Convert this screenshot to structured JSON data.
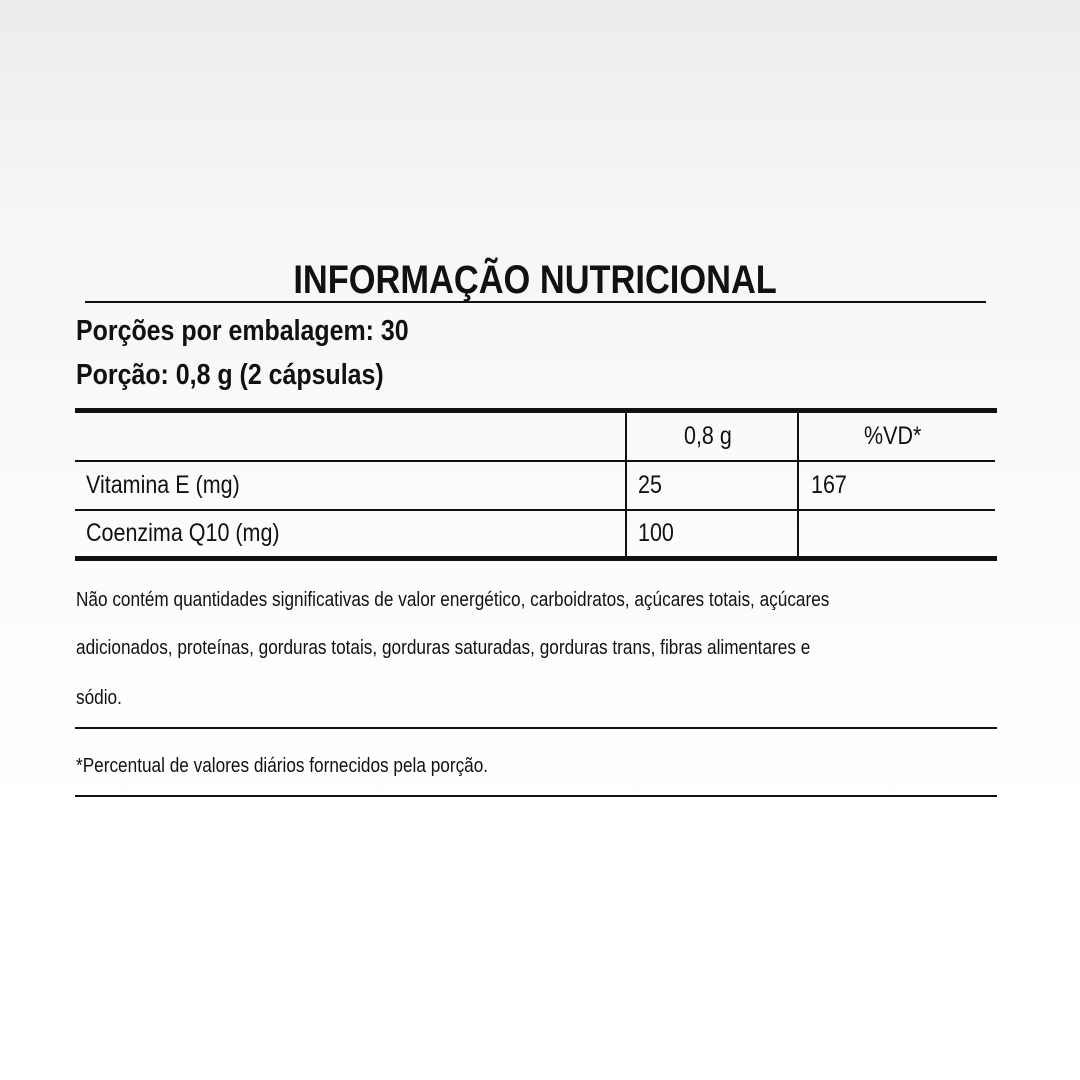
{
  "title": "INFORMAÇÃO NUTRICIONAL",
  "servings_per_package": "Porções por embalagem: 30",
  "serving_size": "Porção: 0,8 g (2 cápsulas)",
  "table": {
    "headers": [
      "",
      "0,8 g",
      "%VD*"
    ],
    "rows": [
      {
        "nutrient": "Vitamina E (mg)",
        "amount": "25",
        "dv": "167"
      },
      {
        "nutrient": "Coenzima Q10 (mg)",
        "amount": "100",
        "dv": ""
      }
    ]
  },
  "notes": {
    "lines": [
      "Não contém quantidades significativas de valor energético, carboidratos, açúcares totais, açúcares",
      "adicionados, proteínas, gorduras totais, gorduras saturadas, gorduras trans, fibras alimentares e",
      "sódio."
    ],
    "footnote": "*Percentual de valores diários fornecidos pela porção."
  }
}
